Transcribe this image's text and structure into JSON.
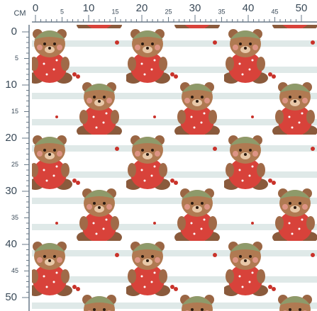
{
  "ruler": {
    "unit": "CM",
    "top_labels": [
      0,
      5,
      10,
      15,
      20,
      25,
      30,
      35,
      40,
      45,
      50
    ],
    "left_labels": [
      0,
      5,
      10,
      15,
      20,
      25,
      30,
      35,
      40,
      45,
      50
    ]
  }
}
